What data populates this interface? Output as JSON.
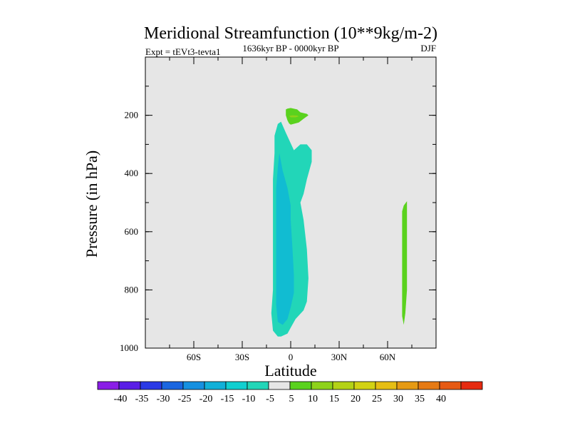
{
  "chart_data": {
    "type": "contour",
    "title": "Meridional Streamfunction (10**9kg/m-2)",
    "subtitle_left": "Expt = tEVt3-tevta1",
    "subtitle_center": "1636kyr BP - 0000kyr BP",
    "subtitle_right": "DJF",
    "xlabel": "Latitude",
    "ylabel": "Pressure (in hPa)",
    "xlim": [
      -90,
      90
    ],
    "ylim": [
      0,
      1000
    ],
    "y_inverted": true,
    "x_ticks": [
      {
        "value": -60,
        "label": "60S"
      },
      {
        "value": -30,
        "label": "30S"
      },
      {
        "value": 0,
        "label": "0"
      },
      {
        "value": 30,
        "label": "30N"
      },
      {
        "value": 60,
        "label": "60N"
      }
    ],
    "y_ticks": [
      {
        "value": 200,
        "label": "200"
      },
      {
        "value": 400,
        "label": "400"
      },
      {
        "value": 600,
        "label": "600"
      },
      {
        "value": 800,
        "label": "800"
      },
      {
        "value": 1000,
        "label": "1000"
      }
    ],
    "background_color": "#e6e6e6",
    "regions": [
      {
        "name": "contour-region-minus5-main",
        "level": "-10 to -5",
        "color": "#22d6b8",
        "points": [
          [
            -8,
            230
          ],
          [
            -6,
            222
          ],
          [
            -3,
            260
          ],
          [
            2,
            320
          ],
          [
            6,
            300
          ],
          [
            10,
            300
          ],
          [
            13,
            320
          ],
          [
            13,
            360
          ],
          [
            10,
            420
          ],
          [
            8,
            470
          ],
          [
            6,
            500
          ],
          [
            8,
            560
          ],
          [
            10,
            660
          ],
          [
            11,
            760
          ],
          [
            10,
            840
          ],
          [
            8,
            870
          ],
          [
            3,
            900
          ],
          [
            0,
            930
          ],
          [
            -2,
            950
          ],
          [
            -6,
            960
          ],
          [
            -8,
            960
          ],
          [
            -11,
            940
          ],
          [
            -12,
            880
          ],
          [
            -11,
            800
          ],
          [
            -11,
            700
          ],
          [
            -11,
            600
          ],
          [
            -11,
            500
          ],
          [
            -11,
            420
          ],
          [
            -10,
            330
          ],
          [
            -10,
            270
          ]
        ]
      },
      {
        "name": "contour-region-minus10-core",
        "level": "-15 to -10",
        "color": "#11bcd2",
        "points": [
          [
            -7,
            330
          ],
          [
            -5,
            390
          ],
          [
            -2,
            450
          ],
          [
            0,
            510
          ],
          [
            0,
            560
          ],
          [
            1,
            650
          ],
          [
            2,
            750
          ],
          [
            2,
            810
          ],
          [
            0,
            860
          ],
          [
            -2,
            900
          ],
          [
            -5,
            920
          ],
          [
            -8,
            910
          ],
          [
            -9,
            850
          ],
          [
            -9,
            750
          ],
          [
            -9,
            650
          ],
          [
            -9,
            550
          ],
          [
            -9,
            450
          ],
          [
            -8,
            380
          ]
        ]
      },
      {
        "name": "contour-region-plus5-upper",
        "level": "5 to 10",
        "color": "#5ad21e",
        "points": [
          [
            -3,
            180
          ],
          [
            -2,
            177
          ],
          [
            0,
            175
          ],
          [
            4,
            180
          ],
          [
            6,
            190
          ],
          [
            10,
            195
          ],
          [
            11,
            200
          ],
          [
            8,
            212
          ],
          [
            5,
            225
          ],
          [
            0,
            232
          ],
          [
            -1,
            228
          ],
          [
            -2,
            218
          ],
          [
            -3,
            200
          ]
        ]
      },
      {
        "name": "contour-region-plus5-upper-core",
        "level": "10 to 15",
        "color": "#8ed21a",
        "points": [
          [
            -1,
            202
          ],
          [
            1,
            200
          ],
          [
            4,
            201
          ],
          [
            5,
            204
          ],
          [
            3,
            207
          ],
          [
            0,
            207
          ]
        ]
      },
      {
        "name": "contour-region-plus5-nh",
        "level": "5 to 10",
        "color": "#5ad21e",
        "points": [
          [
            70,
            510
          ],
          [
            72,
            495
          ],
          [
            72,
            560
          ],
          [
            72,
            700
          ],
          [
            72,
            800
          ],
          [
            71,
            880
          ],
          [
            70,
            920
          ],
          [
            69,
            890
          ],
          [
            69,
            800
          ],
          [
            69,
            700
          ],
          [
            69,
            600
          ],
          [
            69,
            530
          ]
        ]
      }
    ],
    "colorbar": {
      "colors": [
        "#8a1ee6",
        "#5a1ee6",
        "#2a3ae6",
        "#1a66e0",
        "#1690e0",
        "#11b0d8",
        "#10cfd0",
        "#22d6b8",
        "#e6e6e6",
        "#5ad21e",
        "#8ed21a",
        "#b4d216",
        "#d2d214",
        "#e6be14",
        "#e69a14",
        "#e67a14",
        "#e65a14",
        "#e62a10"
      ],
      "labels": [
        "-40",
        "-35",
        "-30",
        "-25",
        "-20",
        "-15",
        "-10",
        "-5",
        "5",
        "10",
        "15",
        "20",
        "25",
        "30",
        "35",
        "40"
      ]
    }
  }
}
